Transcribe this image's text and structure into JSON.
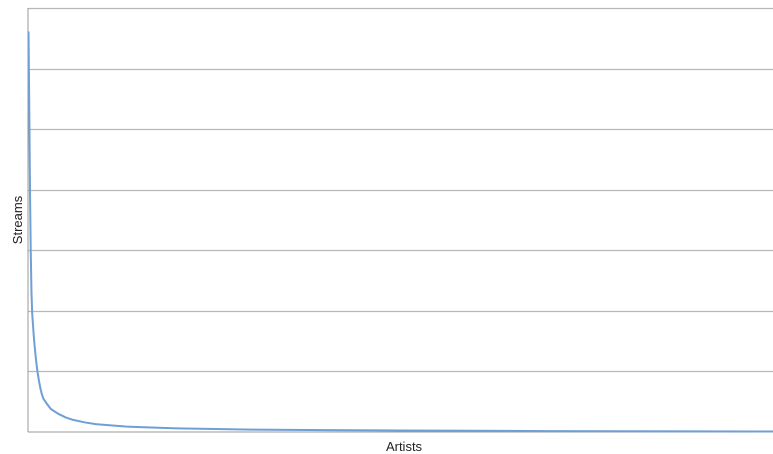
{
  "colors": {
    "background": "#ffffff",
    "gridline": "#b8b8b8",
    "axis": "#999999",
    "series_line": "#6f9fd4"
  },
  "chart_data": {
    "type": "line",
    "title": "",
    "xlabel": "Artists",
    "ylabel": "Streams",
    "x_tick_labels": [],
    "y_tick_labels": [],
    "grid": true,
    "legend": "none",
    "xlim": [
      0,
      1000
    ],
    "ylim": [
      0,
      7
    ],
    "x": [
      0,
      1,
      2,
      3,
      4,
      5,
      7,
      8,
      10,
      12,
      14,
      16,
      18,
      20,
      25,
      30,
      40,
      50,
      60,
      75,
      90,
      100,
      130,
      150,
      200,
      250,
      300,
      400,
      500,
      600,
      700,
      800,
      900,
      1000
    ],
    "series": [
      {
        "values": [
          6.6,
          5.4,
          4.0,
          3.0,
          2.3,
          1.95,
          1.6,
          1.45,
          1.2,
          1.0,
          0.85,
          0.72,
          0.62,
          0.55,
          0.46,
          0.38,
          0.3,
          0.24,
          0.2,
          0.16,
          0.13,
          0.12,
          0.09,
          0.08,
          0.06,
          0.05,
          0.04,
          0.03,
          0.025,
          0.02,
          0.015,
          0.012,
          0.01,
          0.008
        ]
      }
    ]
  }
}
